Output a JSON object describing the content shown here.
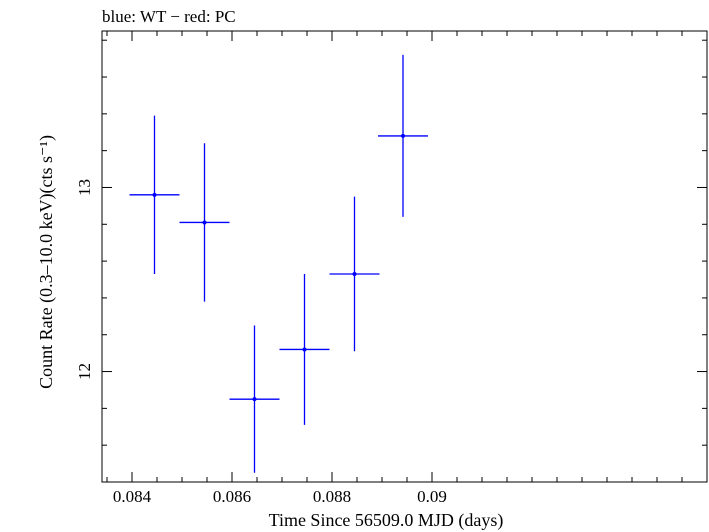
{
  "chart_data": {
    "type": "scatter",
    "title": "blue: WT − red: PC",
    "xlabel": "Time Since 56509.0 MJD (days)",
    "ylabel": "Count Rate (0.3–10.0 keV)(cts s⁻¹)",
    "xlim": [
      0.0834,
      0.0955
    ],
    "ylim": [
      11.4,
      13.85
    ],
    "x_ticks": [
      0.084,
      0.086,
      0.088,
      0.09
    ],
    "x_tick_labels": [
      "0.084",
      "0.086",
      "0.088",
      "0.09"
    ],
    "y_ticks": [
      12,
      13
    ],
    "y_tick_labels": [
      "12",
      "13"
    ],
    "grid": false,
    "series": [
      {
        "name": "WT",
        "color": "#0000ff",
        "points": [
          {
            "x": 0.08445,
            "y": 12.96,
            "xerr": 0.0005,
            "yerr": 0.43
          },
          {
            "x": 0.08545,
            "y": 12.81,
            "xerr": 0.0005,
            "yerr": 0.43
          },
          {
            "x": 0.08645,
            "y": 11.85,
            "xerr": 0.0005,
            "yerr": 0.4
          },
          {
            "x": 0.08745,
            "y": 12.12,
            "xerr": 0.0005,
            "yerr": 0.41
          },
          {
            "x": 0.08845,
            "y": 12.53,
            "xerr": 0.0005,
            "yerr": 0.42
          },
          {
            "x": 0.08942,
            "y": 13.28,
            "xerr": 0.0005,
            "yerr": 0.44
          }
        ]
      }
    ]
  }
}
